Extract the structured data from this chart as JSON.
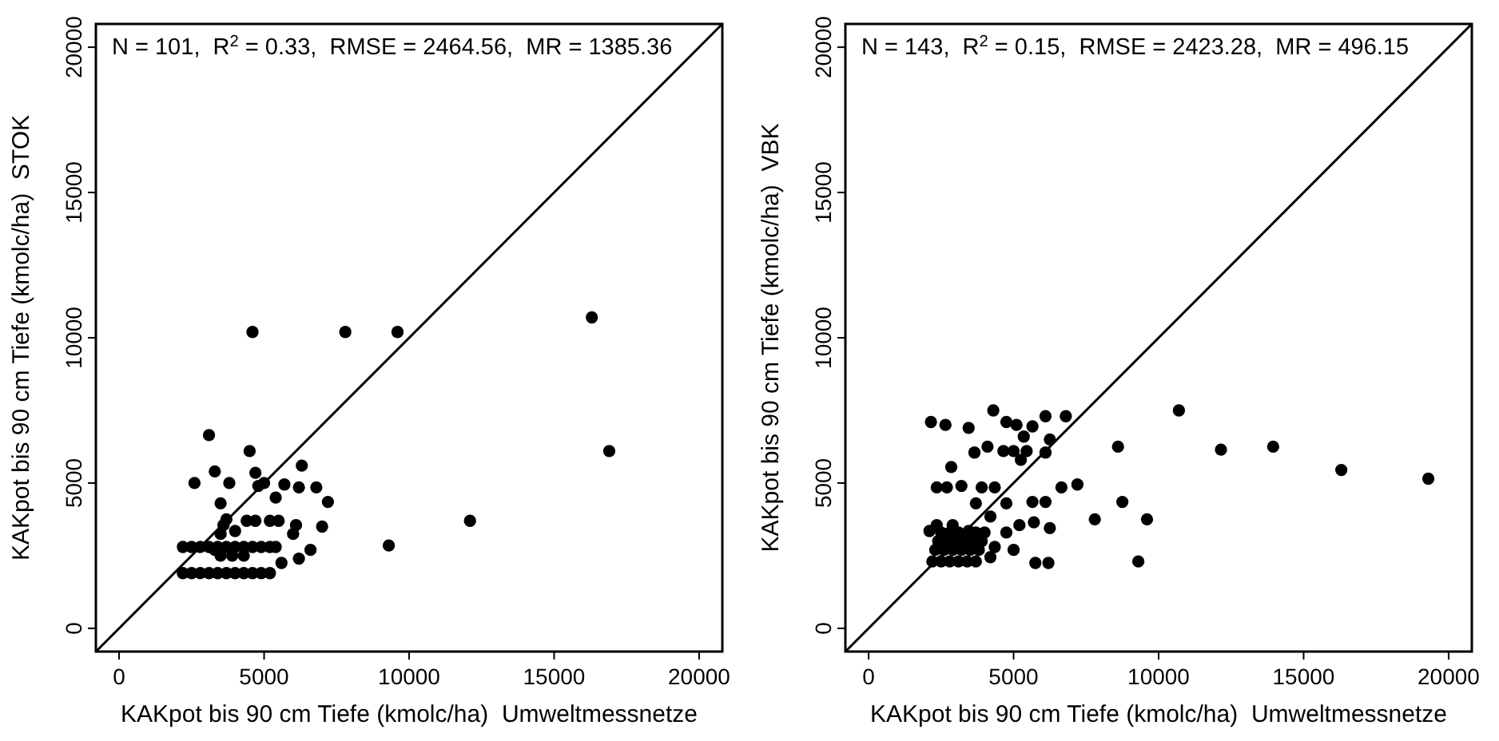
{
  "chart_data": [
    {
      "type": "scatter",
      "xlabel": "KAKpot bis 90 cm Tiefe (kmolc/ha)  Umweltmessnetze",
      "ylabel": "KAKpot bis 90 cm Tiefe (kmolc/ha)  STOK",
      "annotations": [
        "N = 101,  R$^{2}$ = 0.33,  RMSE = 2464.56,  MR = 1385.36"
      ],
      "xlim": [
        -800,
        20800
      ],
      "ylim": [
        -800,
        20800
      ],
      "xticks": [
        0,
        5000,
        10000,
        15000,
        20000
      ],
      "yticks": [
        0,
        5000,
        10000,
        15000,
        20000
      ],
      "grid": false,
      "marker": "circle",
      "series": [
        {
          "color": "#000000",
          "x": [
            4600,
            7800,
            9600,
            16300,
            16900,
            12100,
            9300,
            3100,
            4500,
            2600,
            3300,
            3800,
            3500,
            4700,
            4800,
            5000,
            5400,
            5700,
            6200,
            6300,
            6800,
            7200,
            7000,
            6600,
            6200,
            6100,
            6000,
            5500,
            5200,
            4700,
            4400,
            3700,
            3600,
            4000,
            3500,
            3300,
            5600,
            5200,
            4900,
            2200,
            2500,
            2800,
            3100,
            3400,
            3700,
            4000,
            4300,
            4600,
            2200,
            2500,
            2800,
            3100,
            3400,
            3700,
            4000,
            4300,
            4600,
            4900,
            5200,
            5400,
            3500,
            3900,
            4300
          ],
          "values": [
            10200,
            10200,
            10200,
            10700,
            6100,
            3700,
            2850,
            6650,
            6100,
            5000,
            5400,
            5000,
            4300,
            5350,
            4900,
            5000,
            4500,
            4950,
            4850,
            5600,
            4850,
            4350,
            3500,
            2700,
            2400,
            3550,
            3250,
            3700,
            3700,
            3700,
            3700,
            3750,
            3550,
            3350,
            3250,
            2700,
            2250,
            1900,
            1900,
            1900,
            1900,
            1900,
            1900,
            1900,
            1900,
            1900,
            1900,
            1900,
            2800,
            2800,
            2800,
            2800,
            2800,
            2800,
            2800,
            2800,
            2800,
            2800,
            2800,
            2800,
            2500,
            2500,
            2500
          ]
        },
        {
          "type": "line",
          "marker": "none",
          "color": "#000000",
          "x": [
            -800,
            20800
          ],
          "values": [
            -800,
            20800
          ]
        }
      ]
    },
    {
      "type": "scatter",
      "xlabel": "KAKpot bis 90 cm Tiefe (kmolc/ha)  Umweltmessnetze",
      "ylabel": "KAKpot bis 90 cm Tiefe (kmolc/ha)  VBK",
      "annotations": [
        "N = 143,  R$^{2}$ = 0.15,  RMSE = 2423.28,  MR = 496.15"
      ],
      "xlim": [
        -800,
        20800
      ],
      "ylim": [
        -800,
        20800
      ],
      "xticks": [
        0,
        5000,
        10000,
        15000,
        20000
      ],
      "yticks": [
        0,
        5000,
        10000,
        15000,
        20000
      ],
      "grid": false,
      "marker": "circle",
      "series": [
        {
          "color": "#000000",
          "x": [
            10700,
            8600,
            12150,
            13950,
            16300,
            19300,
            8750,
            9600,
            7800,
            9300,
            6800,
            6100,
            4300,
            2150,
            2650,
            3450,
            4750,
            5100,
            5650,
            5350,
            6250,
            3650,
            4100,
            4650,
            5000,
            5450,
            6100,
            5250,
            2850,
            2350,
            2700,
            3200,
            3900,
            4350,
            6650,
            7200,
            4750,
            3700,
            5650,
            6100,
            5200,
            5700,
            6250,
            4750,
            4200,
            3450,
            2100,
            2350,
            2900,
            4200,
            5000,
            4350,
            5750,
            6200,
            2200,
            2500,
            2800,
            3100,
            3400,
            3700,
            2300,
            2600,
            2900,
            3200,
            3500,
            3800,
            2400,
            2700,
            3000,
            3300,
            3600,
            3900,
            2500,
            2800,
            3100,
            3700,
            4000
          ],
          "values": [
            7500,
            6250,
            6150,
            6250,
            5450,
            5150,
            4350,
            3750,
            3750,
            2300,
            7300,
            7300,
            7500,
            7100,
            7000,
            6900,
            7100,
            7000,
            6950,
            6600,
            6500,
            6050,
            6250,
            6100,
            6100,
            6100,
            6050,
            5800,
            5550,
            4850,
            4850,
            4900,
            4850,
            4850,
            4850,
            4950,
            4300,
            4300,
            4350,
            4350,
            3550,
            3650,
            3450,
            3300,
            3850,
            3350,
            3350,
            3550,
            3550,
            2450,
            2700,
            2800,
            2250,
            2250,
            2300,
            2300,
            2300,
            2300,
            2300,
            2300,
            2700,
            2700,
            2700,
            2700,
            2700,
            2700,
            3000,
            3000,
            3000,
            3000,
            3000,
            3000,
            3300,
            3300,
            3300,
            3300,
            3300
          ]
        },
        {
          "type": "line",
          "marker": "none",
          "color": "#000000",
          "x": [
            -800,
            20800
          ],
          "values": [
            -800,
            20800
          ]
        }
      ]
    }
  ]
}
